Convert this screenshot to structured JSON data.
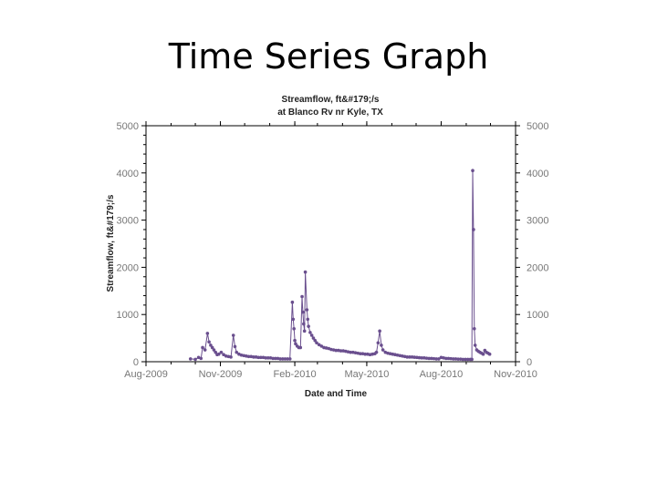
{
  "slide": {
    "title": "Time Series Graph"
  },
  "chart_data": {
    "type": "scatter",
    "title_line1": "Streamflow, ft&#179;/s",
    "title_line2": "at Blanco Rv nr Kyle, TX",
    "ylabel": "Streamflow, ft&#179;/s",
    "xlabel": "Date and Time",
    "ylim": [
      0,
      5000
    ],
    "xlim": [
      "2009-08-01",
      "2010-11-01"
    ],
    "yticks": [
      0,
      1000,
      2000,
      3000,
      4000,
      5000
    ],
    "ytick_labels": [
      "0",
      "1000",
      "2000",
      "3000",
      "4000",
      "5000"
    ],
    "xticks": [
      "2009-08-01",
      "2009-11-01",
      "2010-02-01",
      "2010-05-01",
      "2010-08-01",
      "2010-11-01"
    ],
    "xtick_labels": [
      "Aug-2009",
      "Nov-2009",
      "Feb-2010",
      "May-2010",
      "Aug-2010",
      "Nov-2010"
    ],
    "series_color": "#6a4f8e",
    "series": [
      {
        "x": [
          "2009-09-25",
          "2009-10-01",
          "2009-10-05",
          "2009-10-08",
          "2009-10-10",
          "2009-10-13",
          "2009-10-16",
          "2009-10-18",
          "2009-10-20",
          "2009-10-22",
          "2009-10-24",
          "2009-10-26",
          "2009-10-28",
          "2009-10-30",
          "2009-11-02",
          "2009-11-05",
          "2009-11-08",
          "2009-11-11",
          "2009-11-14",
          "2009-11-17",
          "2009-11-19",
          "2009-11-21",
          "2009-11-24",
          "2009-11-27",
          "2009-11-30",
          "2009-12-03",
          "2009-12-06",
          "2009-12-09",
          "2009-12-12",
          "2009-12-15",
          "2009-12-18",
          "2009-12-21",
          "2009-12-24",
          "2009-12-27",
          "2009-12-30",
          "2010-01-02",
          "2010-01-05",
          "2010-01-08",
          "2010-01-11",
          "2010-01-14",
          "2010-01-17",
          "2010-01-20",
          "2010-01-23",
          "2010-01-26",
          "2010-01-29",
          "2010-01-30",
          "2010-01-31",
          "2010-02-01",
          "2010-02-02",
          "2010-02-04",
          "2010-02-06",
          "2010-02-08",
          "2010-02-10",
          "2010-02-11",
          "2010-02-12",
          "2010-02-13",
          "2010-02-14",
          "2010-02-16",
          "2010-02-17",
          "2010-02-18",
          "2010-02-20",
          "2010-02-22",
          "2010-02-24",
          "2010-02-26",
          "2010-02-28",
          "2010-03-03",
          "2010-03-06",
          "2010-03-09",
          "2010-03-12",
          "2010-03-15",
          "2010-03-18",
          "2010-03-21",
          "2010-03-24",
          "2010-03-27",
          "2010-03-30",
          "2010-04-02",
          "2010-04-05",
          "2010-04-08",
          "2010-04-11",
          "2010-04-14",
          "2010-04-17",
          "2010-04-20",
          "2010-04-23",
          "2010-04-26",
          "2010-04-29",
          "2010-05-02",
          "2010-05-05",
          "2010-05-08",
          "2010-05-11",
          "2010-05-13",
          "2010-05-15",
          "2010-05-17",
          "2010-05-19",
          "2010-05-21",
          "2010-05-24",
          "2010-05-27",
          "2010-05-30",
          "2010-06-02",
          "2010-06-05",
          "2010-06-08",
          "2010-06-11",
          "2010-06-14",
          "2010-06-17",
          "2010-06-20",
          "2010-06-23",
          "2010-06-26",
          "2010-06-29",
          "2010-07-02",
          "2010-07-05",
          "2010-07-08",
          "2010-07-11",
          "2010-07-14",
          "2010-07-17",
          "2010-07-20",
          "2010-07-23",
          "2010-07-26",
          "2010-07-29",
          "2010-08-01",
          "2010-08-04",
          "2010-08-07",
          "2010-08-10",
          "2010-08-13",
          "2010-08-16",
          "2010-08-19",
          "2010-08-22",
          "2010-08-25",
          "2010-08-28",
          "2010-08-31",
          "2010-09-03",
          "2010-09-06",
          "2010-09-08",
          "2010-09-09",
          "2010-09-10",
          "2010-09-11",
          "2010-09-12",
          "2010-09-14",
          "2010-09-16",
          "2010-09-18",
          "2010-09-20",
          "2010-09-22",
          "2010-09-24",
          "2010-09-26",
          "2010-09-28",
          "2010-09-30"
        ],
        "y": [
          60,
          50,
          90,
          70,
          300,
          250,
          600,
          420,
          350,
          300,
          250,
          200,
          150,
          160,
          200,
          150,
          120,
          110,
          100,
          560,
          320,
          200,
          160,
          140,
          130,
          120,
          110,
          110,
          100,
          100,
          90,
          90,
          90,
          80,
          80,
          80,
          70,
          70,
          70,
          60,
          60,
          60,
          60,
          60,
          1260,
          900,
          700,
          450,
          380,
          330,
          300,
          300,
          1380,
          1050,
          800,
          650,
          1900,
          1100,
          900,
          750,
          620,
          560,
          500,
          450,
          400,
          360,
          330,
          300,
          290,
          280,
          260,
          250,
          240,
          240,
          230,
          230,
          220,
          210,
          200,
          200,
          190,
          180,
          170,
          170,
          160,
          160,
          150,
          160,
          170,
          200,
          400,
          650,
          350,
          250,
          200,
          180,
          170,
          160,
          150,
          140,
          130,
          120,
          110,
          100,
          100,
          100,
          95,
          90,
          85,
          80,
          80,
          75,
          70,
          70,
          65,
          60,
          60,
          90,
          80,
          70,
          70,
          65,
          60,
          60,
          55,
          55,
          50,
          50,
          50,
          50,
          50,
          4050,
          2800,
          700,
          350,
          250,
          220,
          200,
          180,
          160,
          240,
          200,
          180,
          160
        ]
      }
    ]
  }
}
